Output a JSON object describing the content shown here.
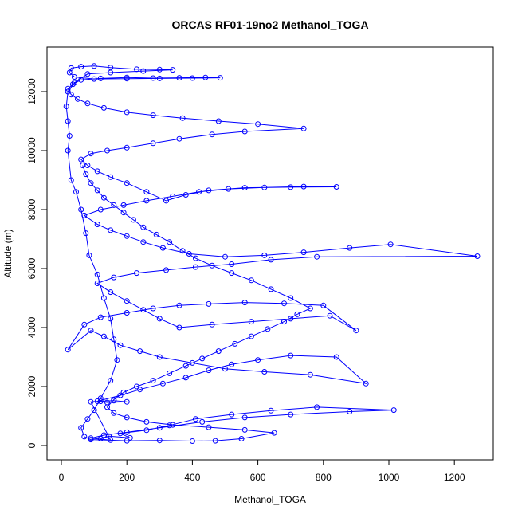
{
  "chart_data": {
    "type": "line",
    "title": "ORCAS RF01-19no2 Methanol_TOGA",
    "xlabel": "Methanol_TOGA",
    "ylabel": "Altitude (m)",
    "xlim": [
      0,
      1270
    ],
    "ylim": [
      100,
      12900
    ],
    "x_ticks": [
      0,
      200,
      400,
      600,
      800,
      1000,
      1200
    ],
    "y_ticks": [
      0,
      2000,
      4000,
      6000,
      8000,
      10000,
      12000
    ],
    "series_color": "#0000ff",
    "marker": "open-circle",
    "grid": false,
    "legend": "none",
    "series": [
      {
        "values": [
          [
            120,
            230
          ],
          [
            145,
            320
          ],
          [
            210,
            260
          ],
          [
            180,
            410
          ],
          [
            260,
            520
          ],
          [
            330,
            680
          ],
          [
            410,
            900
          ],
          [
            520,
            1050
          ],
          [
            640,
            1180
          ],
          [
            780,
            1300
          ],
          [
            1015,
            1200
          ],
          [
            880,
            1150
          ],
          [
            700,
            1050
          ],
          [
            560,
            950
          ],
          [
            430,
            800
          ],
          [
            300,
            600
          ],
          [
            200,
            450
          ],
          [
            130,
            350
          ],
          [
            90,
            250
          ],
          [
            150,
            180
          ],
          [
            90,
            1480
          ],
          [
            120,
            1500
          ],
          [
            160,
            1520
          ],
          [
            200,
            1480
          ],
          [
            140,
            1460
          ],
          [
            110,
            1500
          ],
          [
            180,
            1700
          ],
          [
            240,
            1900
          ],
          [
            310,
            2100
          ],
          [
            380,
            2300
          ],
          [
            450,
            2550
          ],
          [
            520,
            2750
          ],
          [
            600,
            2900
          ],
          [
            700,
            3050
          ],
          [
            840,
            3000
          ],
          [
            930,
            2100
          ],
          [
            760,
            2400
          ],
          [
            620,
            2500
          ],
          [
            500,
            2600
          ],
          [
            400,
            2800
          ],
          [
            300,
            3000
          ],
          [
            240,
            3200
          ],
          [
            180,
            3400
          ],
          [
            130,
            3700
          ],
          [
            90,
            3900
          ],
          [
            20,
            3250
          ],
          [
            70,
            4100
          ],
          [
            120,
            4350
          ],
          [
            200,
            4500
          ],
          [
            280,
            4650
          ],
          [
            360,
            4750
          ],
          [
            450,
            4800
          ],
          [
            560,
            4850
          ],
          [
            680,
            4820
          ],
          [
            800,
            4750
          ],
          [
            900,
            3900
          ],
          [
            820,
            4400
          ],
          [
            700,
            4300
          ],
          [
            580,
            4200
          ],
          [
            460,
            4100
          ],
          [
            360,
            4000
          ],
          [
            300,
            4300
          ],
          [
            250,
            4600
          ],
          [
            200,
            4900
          ],
          [
            150,
            5200
          ],
          [
            110,
            5500
          ],
          [
            160,
            5700
          ],
          [
            230,
            5850
          ],
          [
            320,
            5950
          ],
          [
            410,
            6050
          ],
          [
            520,
            6150
          ],
          [
            640,
            6300
          ],
          [
            780,
            6400
          ],
          [
            1270,
            6420
          ],
          [
            1005,
            6820
          ],
          [
            880,
            6700
          ],
          [
            740,
            6550
          ],
          [
            620,
            6450
          ],
          [
            500,
            6400
          ],
          [
            390,
            6500
          ],
          [
            310,
            6700
          ],
          [
            250,
            6900
          ],
          [
            200,
            7100
          ],
          [
            150,
            7300
          ],
          [
            110,
            7500
          ],
          [
            70,
            7800
          ],
          [
            120,
            8000
          ],
          [
            190,
            8150
          ],
          [
            260,
            8300
          ],
          [
            340,
            8450
          ],
          [
            420,
            8600
          ],
          [
            510,
            8700
          ],
          [
            620,
            8750
          ],
          [
            740,
            8780
          ],
          [
            840,
            8770
          ],
          [
            700,
            8760
          ],
          [
            560,
            8740
          ],
          [
            450,
            8650
          ],
          [
            380,
            8500
          ],
          [
            320,
            8300
          ],
          [
            260,
            8600
          ],
          [
            200,
            8900
          ],
          [
            150,
            9100
          ],
          [
            110,
            9300
          ],
          [
            80,
            9500
          ],
          [
            60,
            9700
          ],
          [
            90,
            9900
          ],
          [
            140,
            10000
          ],
          [
            200,
            10100
          ],
          [
            280,
            10250
          ],
          [
            360,
            10400
          ],
          [
            460,
            10550
          ],
          [
            560,
            10650
          ],
          [
            740,
            10750
          ],
          [
            600,
            10900
          ],
          [
            480,
            11000
          ],
          [
            370,
            11100
          ],
          [
            280,
            11200
          ],
          [
            200,
            11300
          ],
          [
            130,
            11450
          ],
          [
            80,
            11600
          ],
          [
            50,
            11750
          ],
          [
            30,
            11900
          ],
          [
            20,
            12100
          ],
          [
            35,
            12250
          ],
          [
            60,
            12400
          ],
          [
            120,
            12450
          ],
          [
            200,
            12480
          ],
          [
            280,
            12460
          ],
          [
            360,
            12470
          ],
          [
            440,
            12480
          ],
          [
            485,
            12470
          ],
          [
            400,
            12460
          ],
          [
            300,
            12450
          ],
          [
            200,
            12440
          ],
          [
            100,
            12430
          ],
          [
            40,
            12500
          ],
          [
            25,
            12650
          ],
          [
            30,
            12800
          ],
          [
            60,
            12850
          ],
          [
            100,
            12870
          ],
          [
            150,
            12820
          ],
          [
            230,
            12760
          ],
          [
            300,
            12750
          ],
          [
            340,
            12740
          ],
          [
            250,
            12700
          ],
          [
            150,
            12650
          ],
          [
            80,
            12600
          ],
          [
            40,
            12300
          ],
          [
            20,
            12000
          ],
          [
            15,
            11500
          ],
          [
            20,
            11000
          ],
          [
            25,
            10500
          ],
          [
            20,
            10000
          ],
          [
            30,
            9000
          ],
          [
            45,
            8600
          ],
          [
            60,
            8000
          ],
          [
            75,
            7200
          ],
          [
            85,
            6450
          ],
          [
            110,
            5800
          ],
          [
            130,
            5000
          ],
          [
            150,
            4300
          ],
          [
            160,
            3600
          ],
          [
            170,
            2900
          ],
          [
            150,
            2200
          ],
          [
            120,
            1600
          ],
          [
            100,
            1200
          ],
          [
            80,
            900
          ],
          [
            60,
            600
          ],
          [
            70,
            300
          ],
          [
            90,
            200
          ],
          [
            200,
            160
          ],
          [
            300,
            170
          ],
          [
            400,
            150
          ],
          [
            470,
            160
          ],
          [
            550,
            230
          ],
          [
            650,
            430
          ],
          [
            560,
            530
          ],
          [
            450,
            620
          ],
          [
            340,
            700
          ],
          [
            260,
            800
          ],
          [
            200,
            950
          ],
          [
            160,
            1100
          ],
          [
            140,
            1300
          ],
          [
            160,
            1550
          ],
          [
            190,
            1800
          ],
          [
            230,
            2000
          ],
          [
            280,
            2200
          ],
          [
            330,
            2450
          ],
          [
            380,
            2700
          ],
          [
            430,
            2950
          ],
          [
            480,
            3200
          ],
          [
            530,
            3450
          ],
          [
            580,
            3700
          ],
          [
            630,
            3950
          ],
          [
            680,
            4200
          ],
          [
            720,
            4450
          ],
          [
            760,
            4650
          ],
          [
            700,
            5000
          ],
          [
            640,
            5300
          ],
          [
            580,
            5600
          ],
          [
            520,
            5850
          ],
          [
            460,
            6100
          ],
          [
            410,
            6350
          ],
          [
            370,
            6600
          ],
          [
            330,
            6900
          ],
          [
            290,
            7150
          ],
          [
            250,
            7400
          ],
          [
            220,
            7650
          ],
          [
            190,
            7900
          ],
          [
            160,
            8150
          ],
          [
            130,
            8400
          ],
          [
            110,
            8650
          ],
          [
            90,
            8900
          ],
          [
            75,
            9200
          ],
          [
            65,
            9500
          ]
        ]
      }
    ]
  }
}
